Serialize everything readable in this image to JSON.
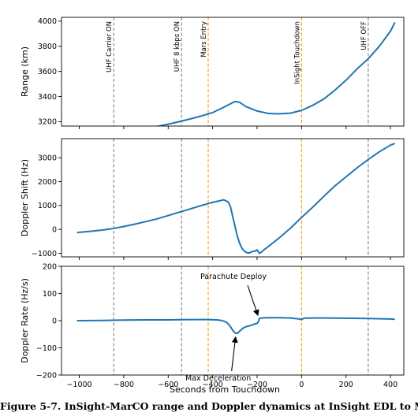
{
  "caption": "Figure 5-7. InSight-MarCO range and Doppler dynamics at InSight EDL to Ma",
  "chart_data": {
    "type": "line",
    "xlabel": "Seconds from Touchdown",
    "xlim": [
      -1080,
      460
    ],
    "xticks": [
      -1000,
      -800,
      -600,
      -400,
      -200,
      0,
      200,
      400
    ],
    "xtick_labels": [
      "−1000",
      "−800",
      "−600",
      "−400",
      "−200",
      "0",
      "200",
      "400"
    ],
    "line_color": "#1f77b4",
    "event_lines": [
      {
        "label": "UHF Carrier ON",
        "x": -845,
        "color": "#808080"
      },
      {
        "label": "UHF 8 kbps ON",
        "x": -540,
        "color": "#808080"
      },
      {
        "label": "Mars Entry",
        "x": -420,
        "color": "#ff9900"
      },
      {
        "label": "InSight Touchdown",
        "x": 0,
        "color": "#ff9900"
      },
      {
        "label": "UHF OFF",
        "x": 300,
        "color": "#808080"
      }
    ],
    "panels": [
      {
        "ylabel": "Range (km)",
        "ylim": [
          3165,
          4030
        ],
        "yticks": [
          3200,
          3400,
          3600,
          3800,
          4000
        ],
        "ytick_labels": [
          "3200",
          "3400",
          "3600",
          "3800",
          "4000"
        ],
        "series": [
          {
            "x": [
              -1010,
              -950,
              -900,
              -850,
              -800,
              -750,
              -700,
              -650,
              -600,
              -550,
              -500,
              -450,
              -420,
              -400,
              -350,
              -300,
              -280,
              -250,
              -200,
              -150,
              -100,
              -50,
              0,
              50,
              100,
              150,
              200,
              250,
              300,
              350,
              400,
              420
            ],
            "y": [
              3130,
              3124,
              3122,
              3123,
              3128,
              3136,
              3148,
              3162,
              3180,
              3200,
              3222,
              3245,
              3262,
              3272,
              3315,
              3360,
              3355,
              3320,
              3285,
              3265,
              3262,
              3268,
              3290,
              3330,
              3380,
              3450,
              3530,
              3620,
              3700,
              3800,
              3920,
              3990
            ]
          }
        ]
      },
      {
        "ylabel": "Doppler Shift (Hz)",
        "ylim": [
          -1150,
          3800
        ],
        "yticks": [
          -1000,
          0,
          1000,
          2000,
          3000
        ],
        "ytick_labels": [
          "−1000",
          "0",
          "1000",
          "2000",
          "3000"
        ],
        "series": [
          {
            "x": [
              -1010,
              -950,
              -900,
              -850,
              -800,
              -750,
              -700,
              -650,
              -600,
              -550,
              -500,
              -450,
              -420,
              -400,
              -350,
              -330,
              -320,
              -310,
              -300,
              -290,
              -280,
              -270,
              -260,
              -250,
              -240,
              -230,
              -220,
              -210,
              -200,
              -190,
              -180,
              -170,
              -150,
              -100,
              -50,
              0,
              50,
              100,
              150,
              200,
              250,
              300,
              350,
              400,
              420
            ],
            "y": [
              -130,
              -80,
              -30,
              30,
              120,
              220,
              330,
              440,
              580,
              720,
              860,
              1000,
              1080,
              1130,
              1240,
              1150,
              950,
              550,
              150,
              -250,
              -550,
              -760,
              -890,
              -960,
              -990,
              -970,
              -920,
              -910,
              -860,
              -1000,
              -950,
              -860,
              -720,
              -350,
              50,
              500,
              930,
              1380,
              1820,
              2200,
              2580,
              2930,
              3250,
              3530,
              3600
            ]
          }
        ]
      },
      {
        "ylabel": "Doppler Rate (Hz/s)",
        "ylim": [
          -200,
          200
        ],
        "yticks": [
          -200,
          -100,
          0,
          100,
          200
        ],
        "ytick_labels": [
          "−200",
          "−100",
          "0",
          "100",
          "200"
        ],
        "series": [
          {
            "x": [
              -1010,
              -900,
              -800,
              -700,
              -600,
              -500,
              -420,
              -380,
              -360,
              -340,
              -330,
              -320,
              -310,
              -300,
              -290,
              -280,
              -270,
              -260,
              -250,
              -240,
              -230,
              -220,
              -210,
              -200,
              -195,
              -190,
              -180,
              -150,
              -100,
              -50,
              -10,
              0,
              10,
              50,
              100,
              200,
              300,
              400,
              420
            ],
            "y": [
              0,
              1,
              2,
              3,
              3,
              4,
              4,
              3,
              1,
              -5,
              -12,
              -22,
              -35,
              -45,
              -47,
              -40,
              -32,
              -26,
              -22,
              -20,
              -18,
              -15,
              -12,
              -10,
              -5,
              8,
              10,
              11,
              11,
              10,
              6,
              4,
              9,
              10,
              10,
              9,
              8,
              6,
              5
            ]
          }
        ]
      }
    ],
    "annotations": [
      {
        "text": "Parachute Deploy",
        "panel": 2,
        "x": -200,
        "y": 8
      },
      {
        "text": "Max Deceleration",
        "panel": 2,
        "x": -297,
        "y": -46
      }
    ]
  }
}
